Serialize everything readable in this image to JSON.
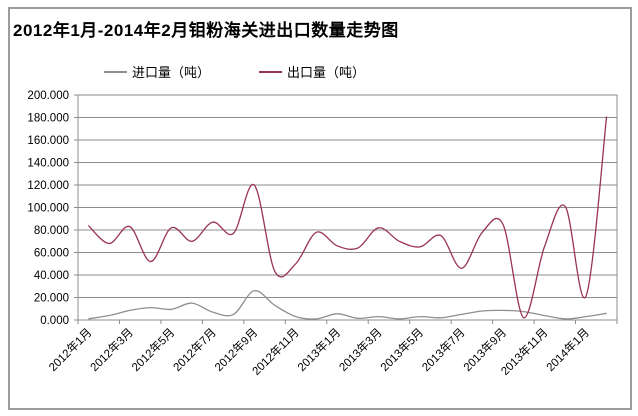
{
  "title": "2012年1月-2014年2月钼粉海关进出口数量走势图",
  "chart_data": {
    "type": "line",
    "title": "2012年1月-2014年2月钼粉海关进出口数量走势图",
    "categories": [
      "2012年1月",
      "2012年2月",
      "2012年3月",
      "2012年4月",
      "2012年5月",
      "2012年6月",
      "2012年7月",
      "2012年8月",
      "2012年9月",
      "2012年10月",
      "2012年11月",
      "2012年12月",
      "2013年1月",
      "2013年2月",
      "2013年3月",
      "2013年4月",
      "2013年5月",
      "2013年6月",
      "2013年7月",
      "2013年8月",
      "2013年9月",
      "2013年10月",
      "2013年11月",
      "2013年12月",
      "2014年1月",
      "2014年2月"
    ],
    "x_tick_labels_shown": [
      "2012年1月",
      "2012年3月",
      "2012年5月",
      "2012年7月",
      "2012年9月",
      "2012年11月",
      "2013年1月",
      "2013年3月",
      "2013年5月",
      "2013年7月",
      "2013年9月",
      "2013年11月",
      "2014年1月"
    ],
    "series": [
      {
        "name": "进口量（吨）",
        "color": "#8f8f8f",
        "values": [
          1,
          4,
          8.5,
          11,
          9.5,
          15,
          7,
          5,
          26,
          13,
          3,
          1,
          5.5,
          1.5,
          3,
          1,
          3,
          2,
          5,
          8,
          8.5,
          7.5,
          4,
          1,
          3,
          6
        ]
      },
      {
        "name": "出口量（吨）",
        "color": "#993355",
        "values": [
          84,
          68,
          83,
          52,
          82,
          70,
          87,
          77,
          120,
          43,
          50,
          78,
          66,
          64,
          82,
          70,
          65,
          75,
          46,
          78,
          85,
          2,
          65,
          101,
          21,
          181
        ]
      }
    ],
    "xlabel": "",
    "ylabel": "",
    "ylim": [
      0,
      200
    ],
    "ytick_step": 20,
    "ytick_labels": [
      "200.000",
      "180.000",
      "160.000",
      "140.000",
      "120.000",
      "100.000",
      "80.000",
      "60.000",
      "40.000",
      "20.000",
      "0.000"
    ],
    "grid": true,
    "legend_position": "top",
    "x_labels_rotated_45": true,
    "line_smoothing": true
  }
}
